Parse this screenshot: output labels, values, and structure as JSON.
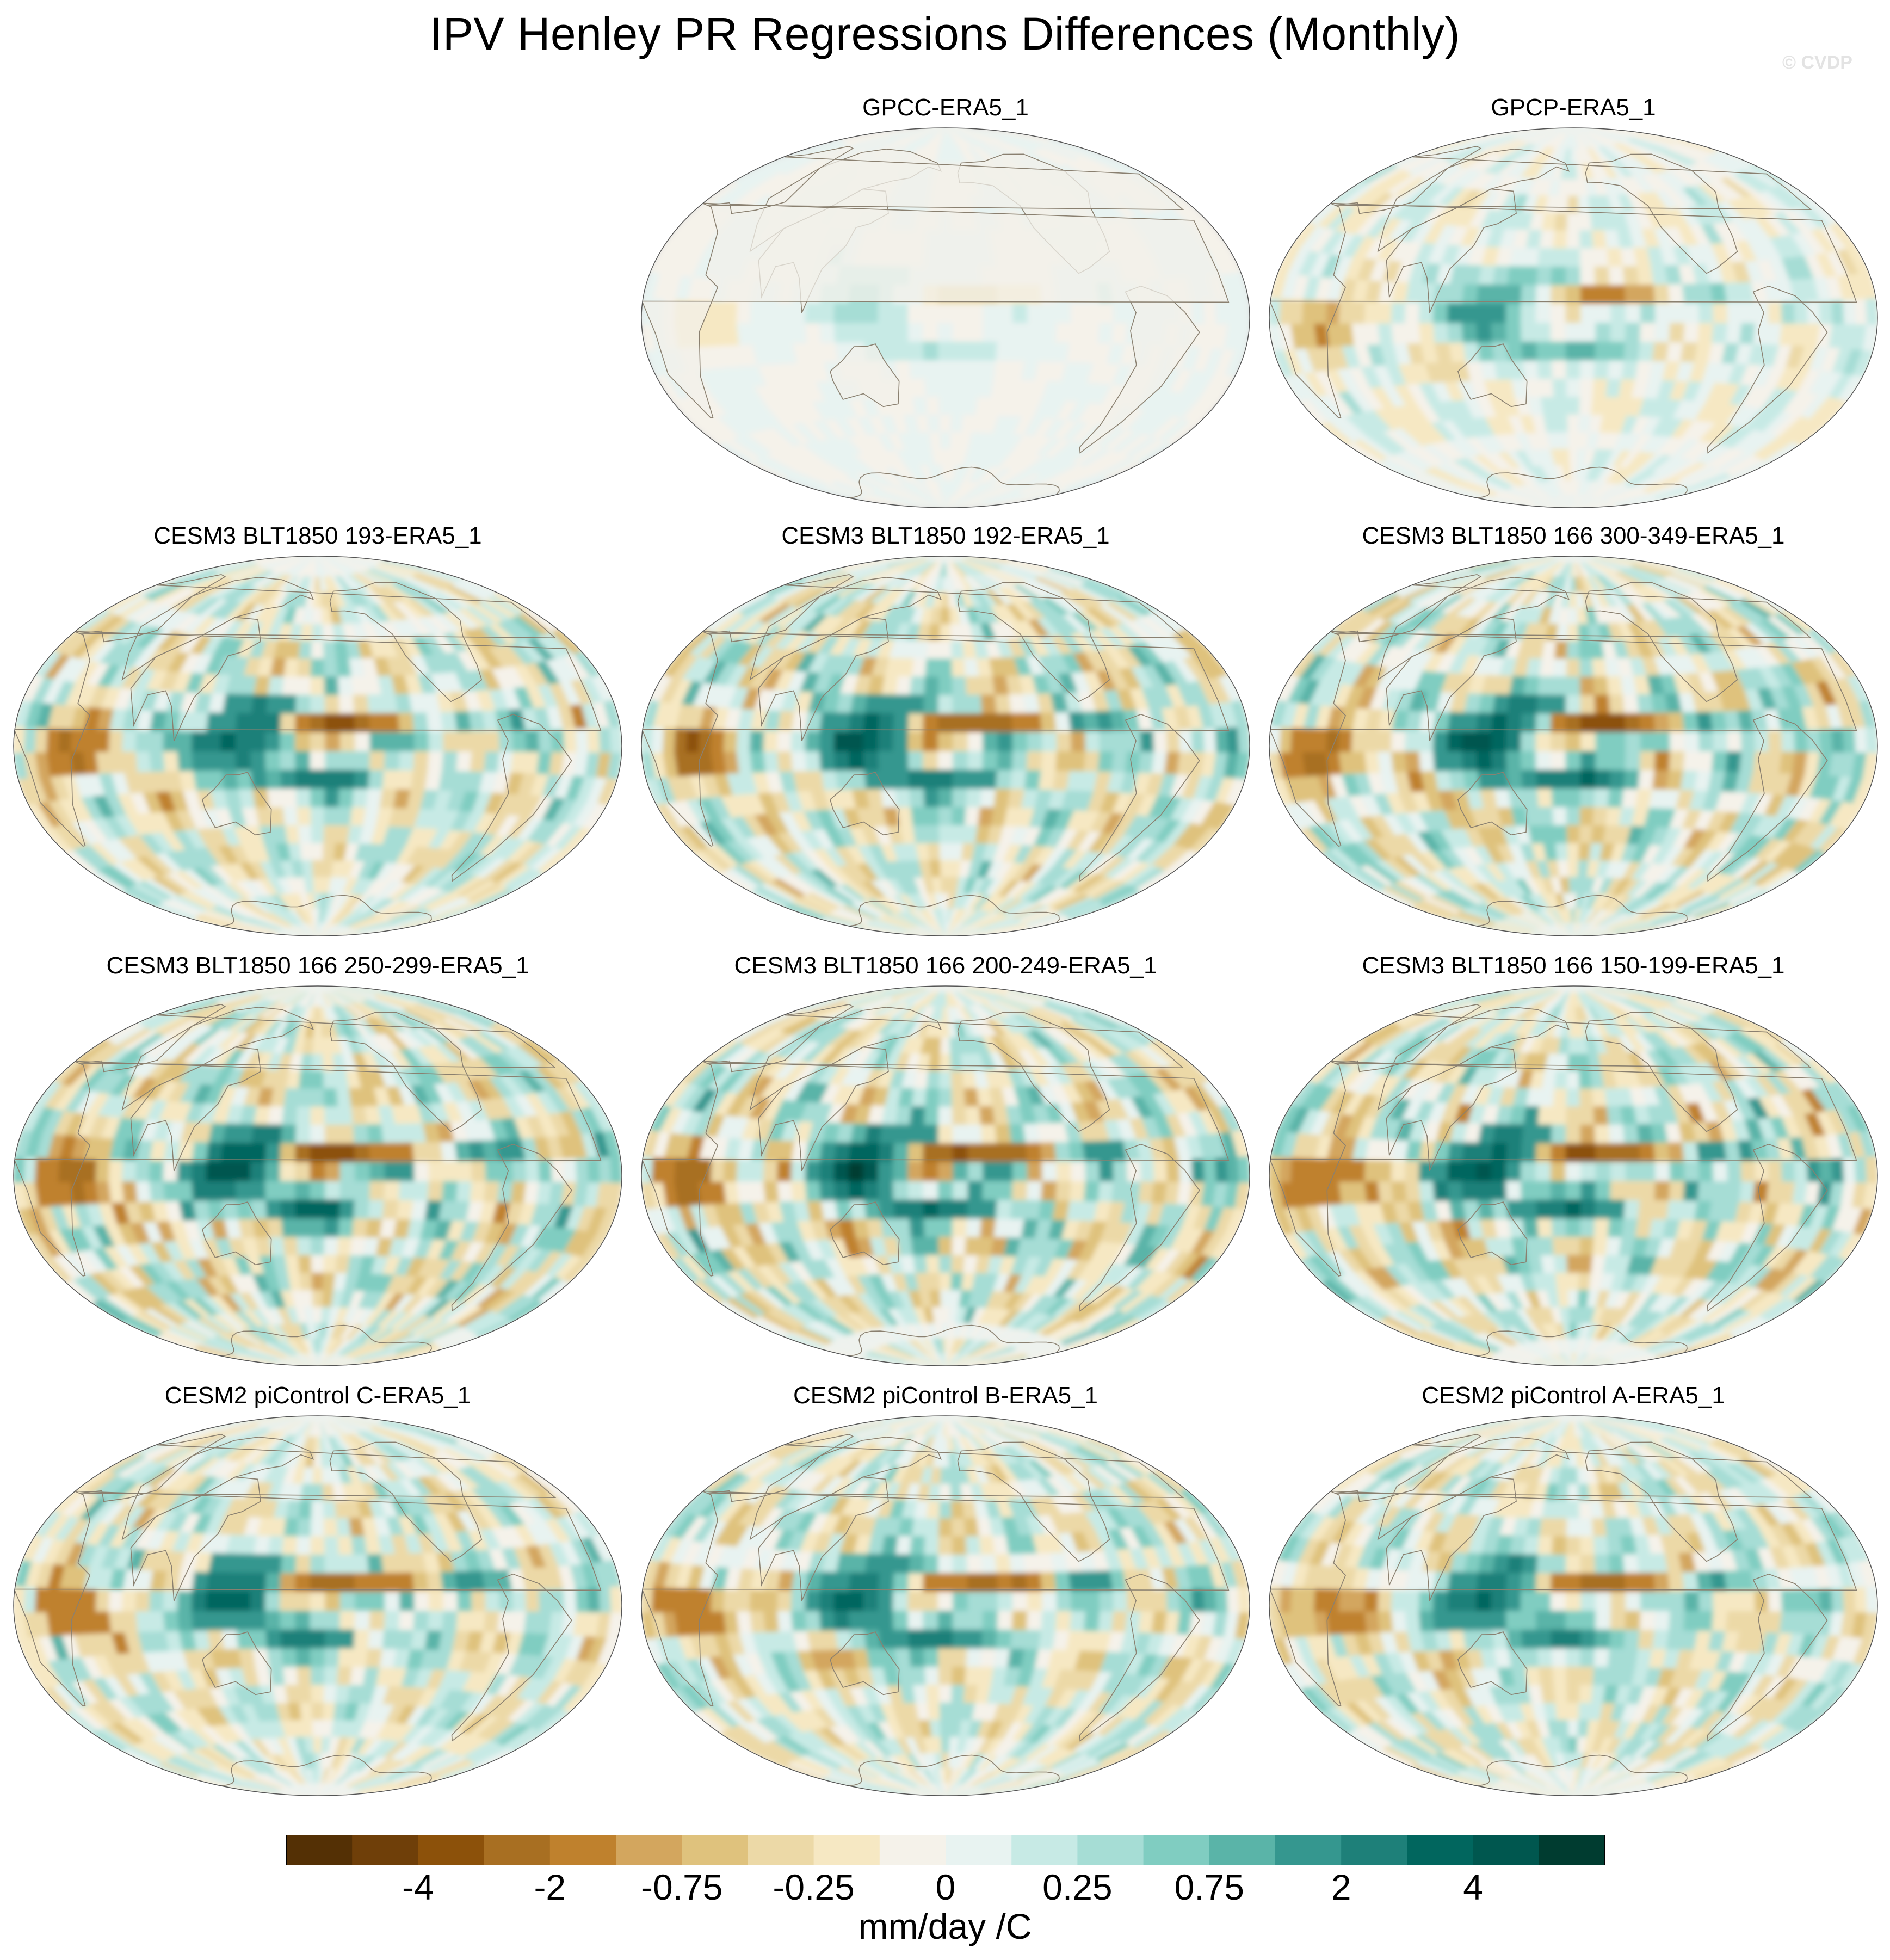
{
  "title": "IPV Henley PR Regressions Differences (Monthly)",
  "watermark": "© CVDP",
  "chart_data": {
    "type": "heatmap",
    "title": "IPV Henley PR Regressions Differences (Monthly)",
    "projection": "Hammer-Aitoff global, Pacific-centered",
    "panels": [
      {
        "name": "GPCC-ERA5_1",
        "ocean_masked": true,
        "amplitude": 0.15
      },
      {
        "name": "GPCP-ERA5_1",
        "ocean_masked": false,
        "amplitude": 0.35
      },
      {
        "name": "CESM3 BLT1850 193-ERA5_1",
        "ocean_masked": false,
        "amplitude": 0.85
      },
      {
        "name": "CESM3 BLT1850 192-ERA5_1",
        "ocean_masked": false,
        "amplitude": 0.95
      },
      {
        "name": "CESM3 BLT1850 166 300-349-ERA5_1",
        "ocean_masked": false,
        "amplitude": 1.0
      },
      {
        "name": "CESM3 BLT1850 166 250-299-ERA5_1",
        "ocean_masked": false,
        "amplitude": 1.05
      },
      {
        "name": "CESM3 BLT1850 166 200-249-ERA5_1",
        "ocean_masked": false,
        "amplitude": 1.05
      },
      {
        "name": "CESM3 BLT1850 166 150-199-ERA5_1",
        "ocean_masked": false,
        "amplitude": 1.0
      },
      {
        "name": "CESM2 piControl C-ERA5_1",
        "ocean_masked": false,
        "amplitude": 0.8
      },
      {
        "name": "CESM2 piControl B-ERA5_1",
        "ocean_masked": false,
        "amplitude": 0.8
      },
      {
        "name": "CESM2 piControl A-ERA5_1",
        "ocean_masked": false,
        "amplitude": 0.75
      }
    ],
    "colorbar": {
      "labels": [
        "-4",
        "-2",
        "-0.75",
        "-0.25",
        "0",
        "0.25",
        "0.75",
        "2",
        "4"
      ],
      "levels": [
        -5,
        -4,
        -3,
        -2,
        -1,
        -0.75,
        -0.5,
        -0.25,
        -0.1,
        0,
        0.1,
        0.25,
        0.5,
        0.75,
        1,
        2,
        3,
        4,
        5
      ],
      "colors": [
        "#543005",
        "#6f3f09",
        "#8c510a",
        "#a86f22",
        "#bf812d",
        "#d3a65e",
        "#dfc27d",
        "#ecd9a7",
        "#f6e8c3",
        "#f5f2ea",
        "#e8f3f1",
        "#c7eae5",
        "#a6ddd5",
        "#80cdc1",
        "#5ab4a8",
        "#35978f",
        "#1e8079",
        "#01665e",
        "#00574f",
        "#003c30"
      ],
      "units": "mm/day /C"
    }
  }
}
